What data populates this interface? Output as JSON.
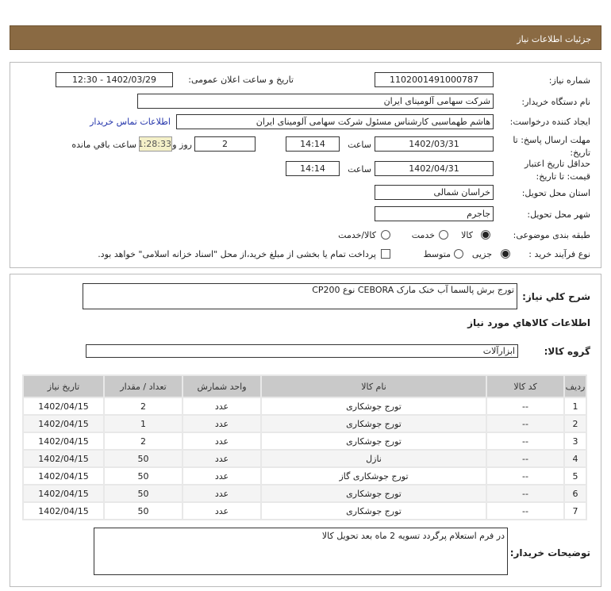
{
  "header": {
    "title": "جزئیات اطلاعات نیاز"
  },
  "form": {
    "need_number_label": "شماره نیاز:",
    "need_number": "1102001491000787",
    "announce_label": "تاریخ و ساعت اعلان عمومی:",
    "announce_value": "1402/03/29 - 12:30",
    "buyer_org_label": "نام دستگاه خریدار:",
    "buyer_org": "شرکت سهامی آلومینای ایران",
    "creator_label": "ایجاد کننده درخواست:",
    "creator": "هاشم طهماسبی کارشناس مسئول شرکت سهامی آلومینای ایران",
    "contact_link": "اطلاعات تماس خریدار",
    "deadline_label_1": "مهلت ارسال پاسخ: تا",
    "deadline_label_2": "تاریخ:",
    "deadline_date": "1402/03/31",
    "time_label": "ساعت",
    "deadline_time": "14:14",
    "days": "2",
    "days_label": "روز و",
    "remaining": "01:28:33",
    "remaining_label": "ساعت باقي مانده",
    "validity_label_1": "حداقل تاریخ اعتبار",
    "validity_label_2": "قیمت: تا تاریخ:",
    "validity_date": "1402/04/31",
    "validity_time": "14:14",
    "province_label": "استان محل تحویل:",
    "province": "خراسان شمالی",
    "city_label": "شهر محل تحویل:",
    "city": "جاجرم",
    "category_label": "طبقه بندی موضوعی:",
    "category_options": [
      "کالا",
      "خدمت",
      "کالا/خدمت"
    ],
    "category_selected": "کالا",
    "process_label": "نوع فرآیند خرید :",
    "process_options": [
      "جزیی",
      "متوسط"
    ],
    "process_selected": "جزیی",
    "payment_note": "پرداخت تمام یا بخشی از مبلغ خرید،از محل \"اسناد خزانه اسلامی\" خواهد بود."
  },
  "details": {
    "desc_label": "شرح کلي نیاز:",
    "desc": "تورج برش پالسما آب خنک مارک CEBORA نوع CP200",
    "items_heading": "اطلاعات کالاهاي مورد نیاز",
    "group_label": "گروه کالا:",
    "group": "ابزارآلات",
    "columns": [
      "ردیف",
      "کد کالا",
      "نام کالا",
      "واحد شمارش",
      "تعداد / مقدار",
      "تاریخ نیاز"
    ],
    "rows": [
      [
        "1",
        "--",
        "تورج جوشکاری",
        "عدد",
        "2",
        "1402/04/15"
      ],
      [
        "2",
        "--",
        "تورج جوشکاری",
        "عدد",
        "1",
        "1402/04/15"
      ],
      [
        "3",
        "--",
        "تورج جوشکاری",
        "عدد",
        "2",
        "1402/04/15"
      ],
      [
        "4",
        "--",
        "نازل",
        "عدد",
        "50",
        "1402/04/15"
      ],
      [
        "5",
        "--",
        "تورج جوشکاری گاز",
        "عدد",
        "50",
        "1402/04/15"
      ],
      [
        "6",
        "--",
        "تورج جوشکاری",
        "عدد",
        "50",
        "1402/04/15"
      ],
      [
        "7",
        "--",
        "تورج جوشکاری",
        "عدد",
        "50",
        "1402/04/15"
      ]
    ],
    "notes_label": "توضیحات خریدار:",
    "notes": "در فرم استعلام پرگردد تسویه 2 ماه بعد تحویل کالا"
  }
}
